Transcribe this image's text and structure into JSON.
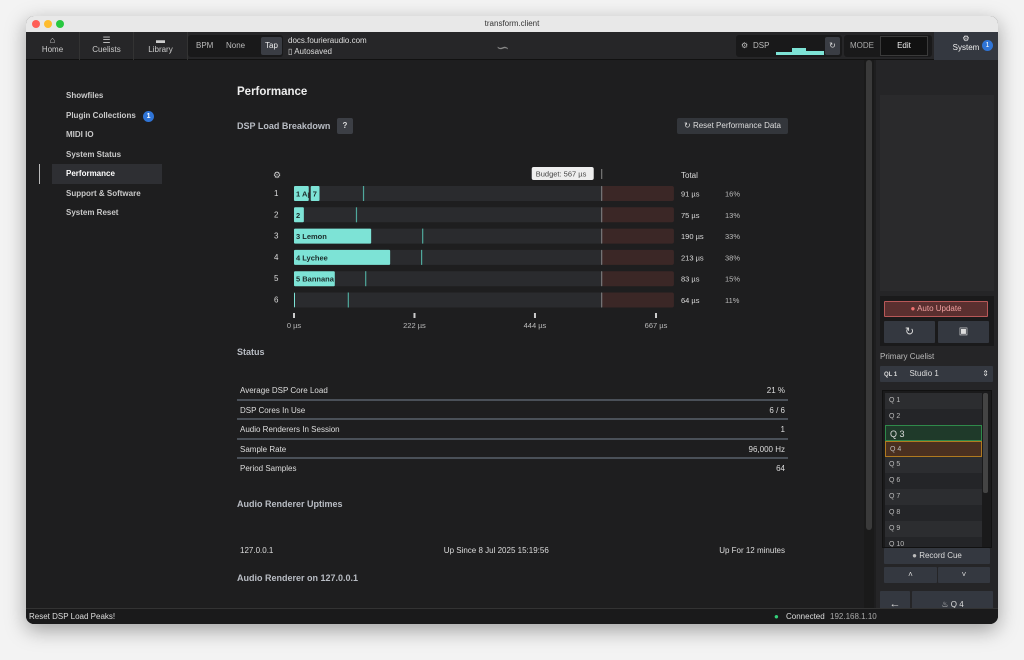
{
  "window": {
    "title": "transform.client"
  },
  "toolbar": {
    "nav": [
      {
        "label": "Home",
        "icon": "home-icon"
      },
      {
        "label": "Cuelists",
        "icon": "list-icon"
      },
      {
        "label": "Library",
        "icon": "briefcase-icon"
      }
    ],
    "bpm_label": "BPM",
    "bpm_value": "None",
    "tap_label": "Tap",
    "doc_title": "docs.fourieraudio.com",
    "doc_status": "Autosaved",
    "dsp_label": "DSP",
    "mode_label": "MODE",
    "mode_value": "Edit",
    "system_label": "System",
    "system_badge": "1"
  },
  "sidebar": {
    "items": [
      {
        "label": "Showfiles"
      },
      {
        "label": "Plugin Collections",
        "badge": "1"
      },
      {
        "label": "MIDI IO"
      },
      {
        "label": "System Status"
      },
      {
        "label": "Performance",
        "active": true
      },
      {
        "label": "Support & Software"
      },
      {
        "label": "System Reset"
      }
    ]
  },
  "main": {
    "title": "Performance",
    "dsp_heading": "DSP Load Breakdown",
    "help_label": "?",
    "reset_button": "Reset Performance Data",
    "total_header": "Total",
    "budget_label": "Budget: 567 µs",
    "status_heading": "Status",
    "status_rows": [
      {
        "label": "Average DSP Core Load",
        "value": "21 %"
      },
      {
        "label": "DSP Cores In Use",
        "value": "6 / 6"
      },
      {
        "label": "Audio Renderers In Session",
        "value": "1"
      },
      {
        "label": "Sample Rate",
        "value": "96,000 Hz"
      },
      {
        "label": "Period Samples",
        "value": "64"
      }
    ],
    "uptimes_heading": "Audio Renderer Uptimes",
    "uptime": {
      "host": "127.0.0.1",
      "since": "Up Since 8 Jul 2025 15:19:56",
      "duration": "Up For 12 minutes"
    },
    "renderer_heading": "Audio Renderer on 127.0.0.1"
  },
  "chart_data": {
    "type": "bar",
    "orientation": "horizontal-stacked",
    "unit": "µs",
    "budget": 567,
    "xlim": [
      0,
      700
    ],
    "ticks": [
      "0 µs",
      "222 µs",
      "444 µs",
      "667 µs"
    ],
    "tick_values": [
      0,
      222,
      444,
      667
    ],
    "rows": [
      {
        "core": "1",
        "segments": [
          {
            "label": "1 Ap",
            "value": 29
          },
          {
            "label": "7",
            "value": 18
          }
        ],
        "peak": 127,
        "total": "91 µs",
        "percent": "16%"
      },
      {
        "core": "2",
        "segments": [
          {
            "label": "2",
            "value": 20
          }
        ],
        "peak": 114,
        "total": "75 µs",
        "percent": "13%"
      },
      {
        "core": "3",
        "segments": [
          {
            "label": "3 Lemon",
            "value": 144
          }
        ],
        "peak": 236,
        "total": "190 µs",
        "percent": "33%"
      },
      {
        "core": "4",
        "segments": [
          {
            "label": "4 Lychee",
            "value": 179
          }
        ],
        "peak": 234,
        "total": "213 µs",
        "percent": "38%"
      },
      {
        "core": "5",
        "segments": [
          {
            "label": "5 Bannana",
            "value": 77
          }
        ],
        "peak": 131,
        "total": "83 µs",
        "percent": "15%"
      },
      {
        "core": "6",
        "segments": [
          {
            "label": "",
            "value": 2
          }
        ],
        "peak": 99,
        "total": "64 µs",
        "percent": "11%"
      }
    ],
    "colors": {
      "bar": "#7de3d6",
      "track": "#2a2b2e",
      "over_budget": "#3b2726",
      "peak": "#4fa89c"
    }
  },
  "right_panel": {
    "auto_update": "Auto Update",
    "primary_cuelist_label": "Primary Cuelist",
    "cuelist_id": "QL 1",
    "cuelist_name": "Studio 1",
    "cues": [
      "Q 1",
      "Q 2",
      "Q 3",
      "Q 4",
      "Q 5",
      "Q 6",
      "Q 7",
      "Q 8",
      "Q 9",
      "Q 10"
    ],
    "current_cue": "Q 3",
    "next_cue": "Q 4",
    "record_cue": "Record Cue",
    "go_label": "Q 4"
  },
  "statusbar": {
    "message": "Reset DSP Load Peaks!",
    "connection": "Connected",
    "ip": "192.168.1.10"
  }
}
